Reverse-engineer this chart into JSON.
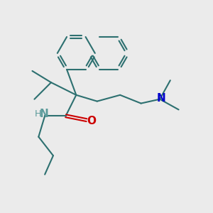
{
  "bg_color": "#ebebeb",
  "bond_color": "#2d7070",
  "n_color": "#0000cc",
  "o_color": "#cc0000",
  "hn_color": "#5a9a9a",
  "line_width": 1.5,
  "font_size": 10,
  "xlim": [
    0,
    10
  ],
  "ylim": [
    0,
    10
  ]
}
